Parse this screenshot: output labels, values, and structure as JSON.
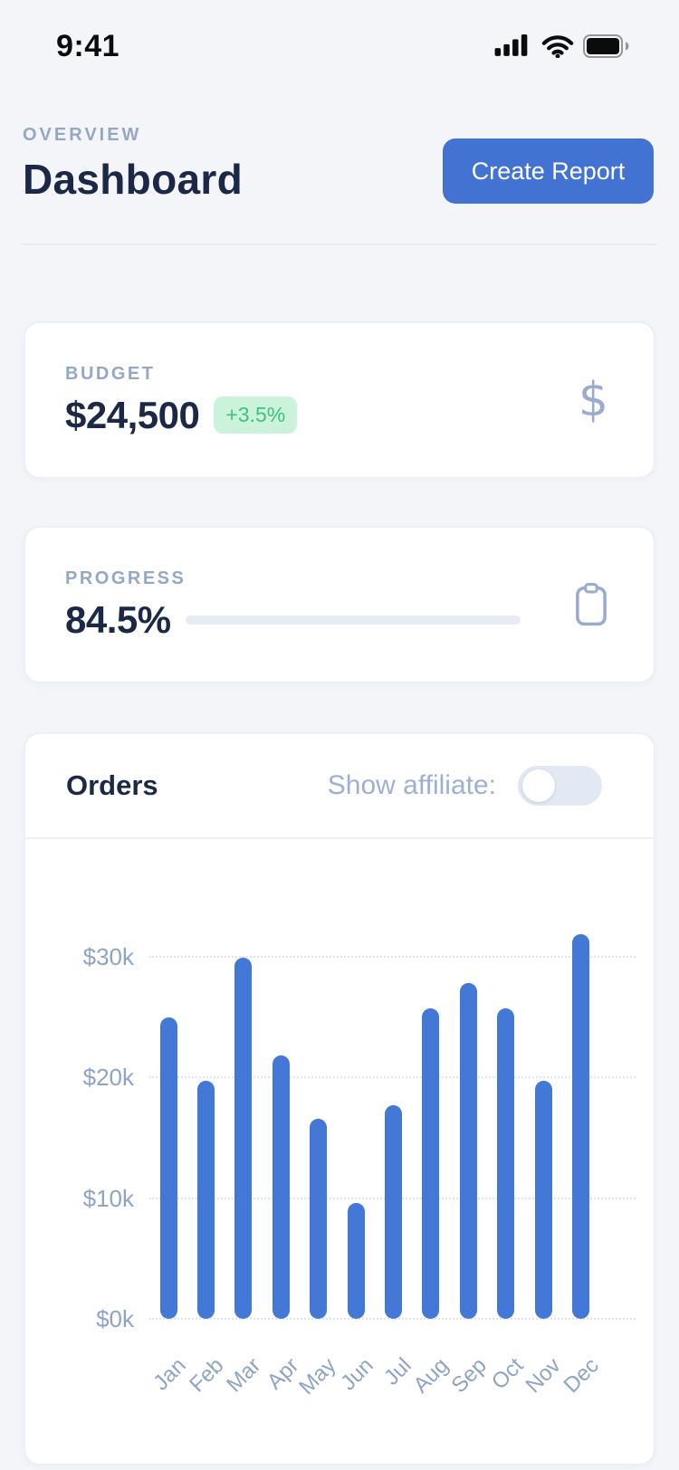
{
  "status_bar": {
    "time": "9:41",
    "signal_icon": "cellular-signal-full",
    "wifi_icon": "wifi-full",
    "battery_icon": "battery-full"
  },
  "header": {
    "eyebrow": "OVERVIEW",
    "title": "Dashboard",
    "create_report_label": "Create Report"
  },
  "budget_card": {
    "label": "BUDGET",
    "value": "$24,500",
    "delta_badge": "+3.5%",
    "icon": "dollar-icon",
    "icon_glyph": "$"
  },
  "progress_card": {
    "label": "PROGRESS",
    "value": "84.5%",
    "percent": 84.5,
    "icon": "clipboard-icon"
  },
  "orders_card": {
    "title": "Orders",
    "toggle_label": "Show affiliate:",
    "toggle_state": "off"
  },
  "chart_data": {
    "type": "bar",
    "title": "Orders",
    "categories": [
      "Jan",
      "Feb",
      "Mar",
      "Apr",
      "May",
      "Jun",
      "Jul",
      "Aug",
      "Sep",
      "Oct",
      "Nov",
      "Dec"
    ],
    "values": [
      25.0,
      19.7,
      29.9,
      21.8,
      16.6,
      9.6,
      17.7,
      25.7,
      27.8,
      25.7,
      19.7,
      31.9
    ],
    "unit": "$k",
    "ytick_values": [
      0,
      10,
      20,
      30
    ],
    "ytick_labels": [
      "$0k",
      "$10k",
      "$20k",
      "$30k"
    ],
    "ylim": [
      0,
      35
    ],
    "xlabel": "",
    "ylabel": "",
    "grid": "dotted-horizontal",
    "legend": "none",
    "bar_color": "#4478d6"
  },
  "colors": {
    "accent_blue": "#4273d3",
    "bar_blue": "#4478d6",
    "badge_green_text": "#3fc27d",
    "badge_green_bg": "#cbf3db",
    "navy_text": "#1b2947",
    "muted_label": "#95a7c6",
    "icon_periwinkle": "#9aabd0",
    "page_bg": "#f3f5f9",
    "card_bg": "#ffffff"
  }
}
